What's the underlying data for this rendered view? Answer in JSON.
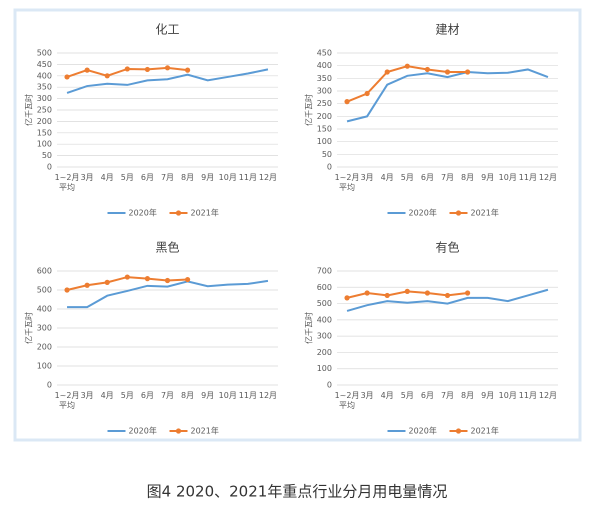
{
  "chart_data": [
    {
      "type": "line",
      "title": "化工",
      "y_label": "亿千瓦时",
      "categories": [
        "1~2月平均",
        "3月",
        "4月",
        "5月",
        "6月",
        "7月",
        "8月",
        "9月",
        "10月",
        "11月",
        "12月"
      ],
      "series": [
        {
          "name": "2020年",
          "color": "#5b9bd5",
          "values": [
            325,
            355,
            365,
            360,
            380,
            385,
            405,
            380,
            395,
            410,
            428
          ]
        },
        {
          "name": "2021年",
          "color": "#ed7d31",
          "marker": "circle",
          "values": [
            395,
            425,
            400,
            430,
            428,
            435,
            425,
            null,
            null,
            null,
            null
          ]
        }
      ],
      "ylim": [
        0,
        500
      ],
      "yticks": [
        0,
        50,
        100,
        150,
        200,
        250,
        300,
        350,
        400,
        450,
        500
      ],
      "grid": true,
      "legend": "bottom"
    },
    {
      "type": "line",
      "title": "建材",
      "y_label": "亿千瓦时",
      "categories": [
        "1~2月平均",
        "3月",
        "4月",
        "5月",
        "6月",
        "7月",
        "8月",
        "9月",
        "10月",
        "11月",
        "12月"
      ],
      "series": [
        {
          "name": "2020年",
          "color": "#5b9bd5",
          "values": [
            180,
            200,
            325,
            360,
            370,
            355,
            375,
            370,
            372,
            385,
            355
          ]
        },
        {
          "name": "2021年",
          "color": "#ed7d31",
          "marker": "circle",
          "values": [
            258,
            290,
            375,
            398,
            385,
            375,
            375,
            null,
            null,
            null,
            null
          ]
        }
      ],
      "ylim": [
        0,
        450
      ],
      "yticks": [
        0,
        50,
        100,
        150,
        200,
        250,
        300,
        350,
        400,
        450
      ],
      "grid": true,
      "legend": "bottom"
    },
    {
      "type": "line",
      "title": "黑色",
      "y_label": "亿千瓦时",
      "categories": [
        "1~2月平均",
        "3月",
        "4月",
        "5月",
        "6月",
        "7月",
        "8月",
        "9月",
        "10月",
        "11月",
        "12月"
      ],
      "series": [
        {
          "name": "2020年",
          "color": "#5b9bd5",
          "values": [
            410,
            410,
            470,
            495,
            522,
            518,
            545,
            520,
            528,
            532,
            548
          ]
        },
        {
          "name": "2021年",
          "color": "#ed7d31",
          "marker": "circle",
          "values": [
            500,
            525,
            540,
            568,
            560,
            550,
            555,
            null,
            null,
            null,
            null
          ]
        }
      ],
      "ylim": [
        0,
        600
      ],
      "yticks": [
        0,
        100,
        200,
        300,
        400,
        500,
        600
      ],
      "grid": true,
      "legend": "bottom"
    },
    {
      "type": "line",
      "title": "有色",
      "y_label": "亿千瓦时",
      "categories": [
        "1~2月平均",
        "3月",
        "4月",
        "5月",
        "6月",
        "7月",
        "8月",
        "9月",
        "10月",
        "11月",
        "12月"
      ],
      "series": [
        {
          "name": "2020年",
          "color": "#5b9bd5",
          "values": [
            455,
            490,
            515,
            505,
            515,
            500,
            535,
            535,
            515,
            550,
            585
          ]
        },
        {
          "name": "2021年",
          "color": "#ed7d31",
          "marker": "circle",
          "values": [
            535,
            565,
            550,
            575,
            565,
            550,
            565,
            null,
            null,
            null,
            null
          ]
        }
      ],
      "ylim": [
        0,
        700
      ],
      "yticks": [
        0,
        100,
        200,
        300,
        400,
        500,
        600,
        700
      ],
      "grid": true,
      "legend": "bottom"
    }
  ],
  "caption": "图4 2020、2021年重点行业分月用电量情况"
}
